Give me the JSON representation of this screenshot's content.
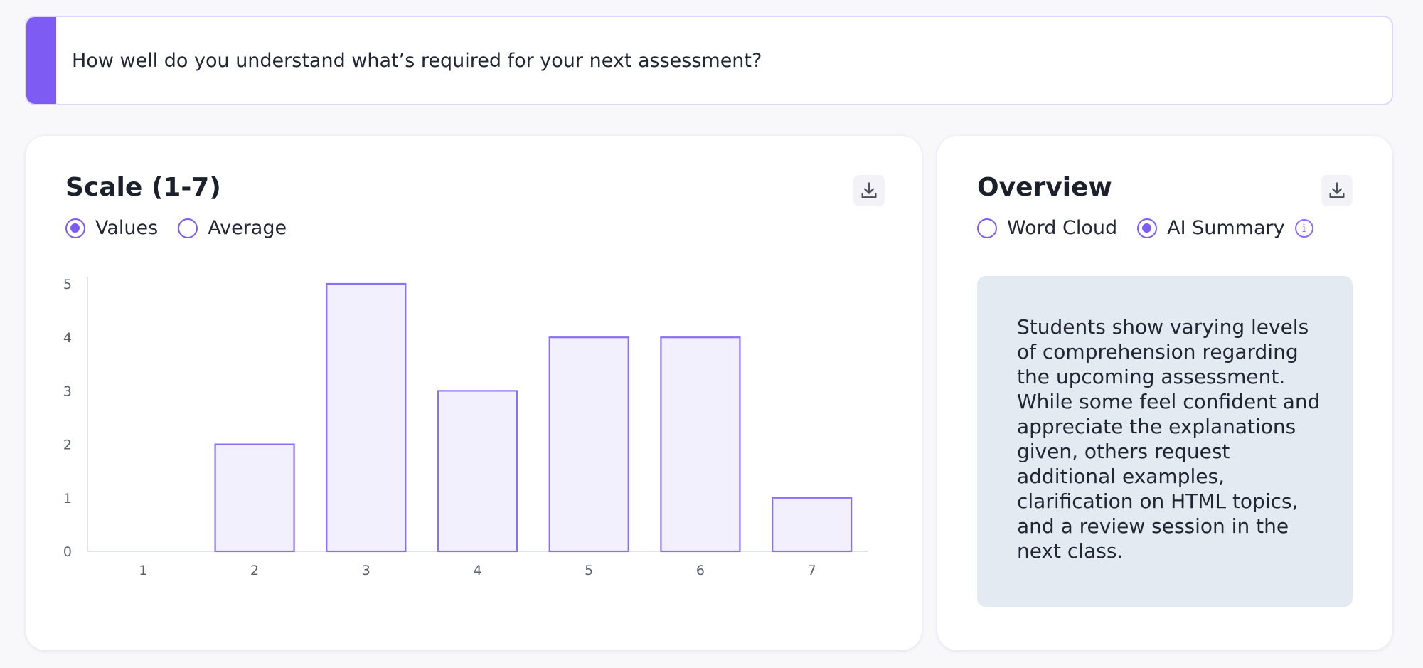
{
  "question": {
    "text": "How well do you understand what’s required for your next assessment?",
    "accent_color": "#7c5cf2"
  },
  "scale_card": {
    "title": "Scale (1-7)",
    "download_icon": "download-icon",
    "view_options": [
      {
        "label": "Values",
        "selected": true
      },
      {
        "label": "Average",
        "selected": false
      }
    ]
  },
  "overview_card": {
    "title": "Overview",
    "download_icon": "download-icon",
    "view_options": [
      {
        "label": "Word Cloud",
        "selected": false
      },
      {
        "label": "AI Summary",
        "selected": true
      }
    ],
    "info_icon": "info-icon",
    "summary": "Students show varying levels of comprehension regarding the upcoming assessment. While some feel confident and appreciate the explanations given, others request additional examples, clarification on HTML topics, and a review session in the next class."
  },
  "chart_data": {
    "type": "bar",
    "categories": [
      "1",
      "2",
      "3",
      "4",
      "5",
      "6",
      "7"
    ],
    "values": [
      0,
      2,
      5,
      3,
      4,
      4,
      1
    ],
    "ylim": [
      0,
      5
    ],
    "yticks": [
      "0",
      "1",
      "2",
      "3",
      "4",
      "5"
    ],
    "bar_fill": "#f3f0fe",
    "bar_stroke": "#8b6ff4",
    "grid": false
  }
}
